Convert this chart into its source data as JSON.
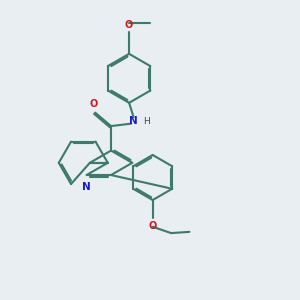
{
  "bg_color": "#e8eef2",
  "bond_color": "#3d7a6a",
  "n_color": "#1a1acc",
  "o_color": "#cc1a1a",
  "h_color": "#444444",
  "lw": 1.5,
  "dbo": 0.055,
  "figsize": [
    3.0,
    3.0
  ],
  "dpi": 100,
  "xlim": [
    0.0,
    10.0
  ],
  "ylim": [
    0.5,
    10.5
  ]
}
